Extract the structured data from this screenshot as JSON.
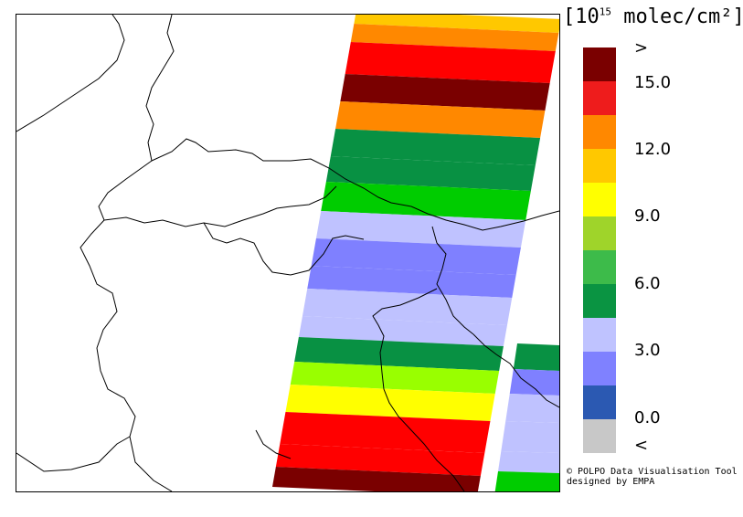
{
  "legend": {
    "title_prefix": "[10",
    "title_exp": "15",
    "title_suffix": " molec/cm²]",
    "colors": [
      "#7a0000",
      "#ee1c1c",
      "#ff8800",
      "#ffc800",
      "#ffff00",
      "#9fd42a",
      "#3dbb4a",
      "#0a9442",
      "#bfc3ff",
      "#7f81ff",
      "#2b59b2",
      "#c8c8c8"
    ],
    "tick_labels": [
      ">",
      "15.0",
      "12.0",
      "9.0",
      "6.0",
      "3.0",
      "0.0",
      "<"
    ]
  },
  "credit": {
    "line1": "© POLPO Data Visualisation Tool",
    "line2": "designed by EMPA"
  },
  "swath_colors": {
    "dark_red": "#7a0000",
    "red": "#ff0000",
    "orange": "#ff8800",
    "gold": "#ffc800",
    "yellow": "#ffff00",
    "lime": "#99ff00",
    "green": "#00cc00",
    "dark_green": "#089143",
    "pale_blue": "#bfc2ff",
    "blue": "#7f80ff"
  }
}
